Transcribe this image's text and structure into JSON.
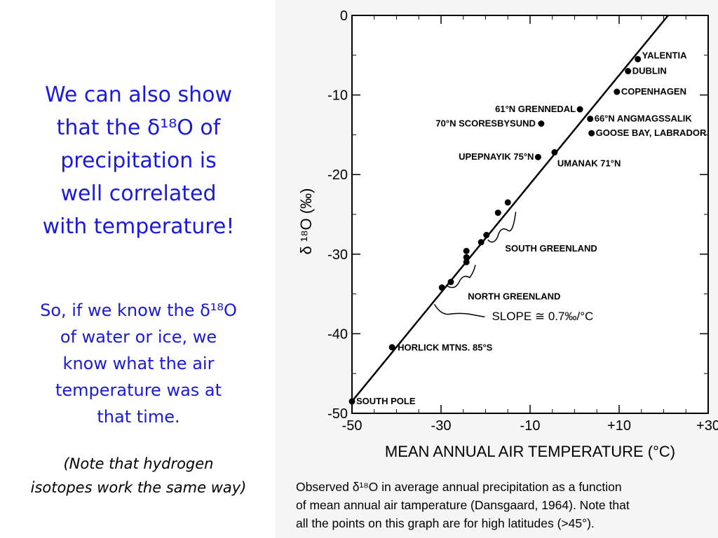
{
  "headline": {
    "lines": [
      "We can also show",
      "that the δ¹⁸O of",
      "precipitation is",
      "well correlated",
      "with temperature!"
    ]
  },
  "subtext": {
    "lines": [
      "So, if we know the δ¹⁸O",
      "of water or ice, we",
      "know what the air",
      "temperature was at",
      "that time."
    ]
  },
  "note": {
    "lines": [
      "(Note that hydrogen",
      "isotopes work the same way)"
    ]
  },
  "caption": {
    "lines": [
      "Observed  δ¹⁸O in average annual precipitation as a function",
      "of mean annual air tamperature (Dansgaard, 1964).  Note that",
      "all the points on this graph are for high latitudes (>45°)."
    ]
  },
  "chart_data": {
    "type": "scatter",
    "xlabel": "MEAN ANNUAL AIR TEMPERATURE (°C)",
    "ylabel": "δ ¹⁸O (‰)",
    "xlim": [
      -50,
      30
    ],
    "ylim": [
      -50,
      0
    ],
    "xticks": [
      -50,
      -30,
      -10,
      10,
      30
    ],
    "xtick_labels": [
      "-50",
      "-30",
      "-10",
      "+10",
      "+30"
    ],
    "yticks": [
      0,
      -10,
      -20,
      -30,
      -40,
      -50
    ],
    "ytick_labels": [
      "0",
      "-10",
      "-20",
      "-30",
      "-40",
      "-50"
    ],
    "grid": false,
    "fit_line": {
      "x": [
        -50,
        21
      ],
      "y": [
        -48.5,
        0
      ]
    },
    "points": [
      {
        "x": 14.2,
        "y": -5.5,
        "label": "YALENTIA"
      },
      {
        "x": 12.0,
        "y": -7.0,
        "label": "DUBLIN"
      },
      {
        "x": 9.5,
        "y": -9.6,
        "label": "COPENHAGEN"
      },
      {
        "x": 1.2,
        "y": -11.8,
        "label": "61°N GRENNEDAL"
      },
      {
        "x": 3.5,
        "y": -13.0,
        "label": "66°N ANGMAGSSALIK"
      },
      {
        "x": 3.8,
        "y": -14.8,
        "label": "GOOSE BAY, LABRADOR"
      },
      {
        "x": -7.5,
        "y": -13.6,
        "label": "70°N SCORESBYSUND"
      },
      {
        "x": -8.2,
        "y": -17.8,
        "label": "UPEPNAYIK 75°N"
      },
      {
        "x": -4.5,
        "y": -17.2,
        "label": "UMANAK 71°N"
      },
      {
        "x": -15.0,
        "y": -23.5
      },
      {
        "x": -17.2,
        "y": -24.8
      },
      {
        "x": -19.8,
        "y": -27.6
      },
      {
        "x": -21.0,
        "y": -28.5
      },
      {
        "x": -24.3,
        "y": -29.6
      },
      {
        "x": -24.3,
        "y": -30.4
      },
      {
        "x": -24.3,
        "y": -31.0
      },
      {
        "x": -27.8,
        "y": -33.5
      },
      {
        "x": -29.8,
        "y": -34.2
      },
      {
        "x": -41.0,
        "y": -41.7,
        "label": "HORLICK MTNS. 85°S"
      },
      {
        "x": -50.0,
        "y": -48.5,
        "label": "SOUTH POLE"
      }
    ],
    "annotations": [
      {
        "text": "SOUTH GREENLAND"
      },
      {
        "text": "NORTH GREENLAND"
      },
      {
        "text": "SLOPE ≅ 0.7‰/°C"
      }
    ]
  }
}
